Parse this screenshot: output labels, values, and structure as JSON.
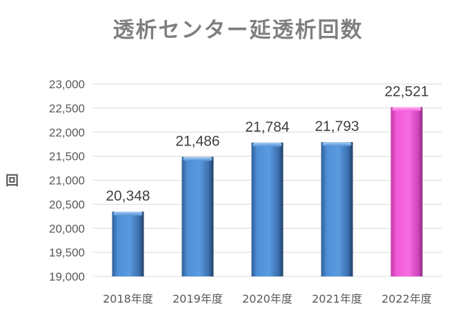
{
  "chart_data": {
    "type": "bar",
    "title": "透析センター延透析回数",
    "xlabel": "",
    "ylabel": "回",
    "categories": [
      "2018年度",
      "2019年度",
      "2020年度",
      "2021年度",
      "2022年度"
    ],
    "values": [
      20348,
      21486,
      21784,
      21793,
      22521
    ],
    "value_labels": [
      "20,348",
      "21,486",
      "21,784",
      "21,793",
      "22,521"
    ],
    "ylim": [
      19000,
      23000
    ],
    "yticks": [
      19000,
      19500,
      20000,
      20500,
      21000,
      21500,
      22000,
      22500,
      23000
    ],
    "ytick_labels": [
      "19,000",
      "19,500",
      "20,000",
      "20,500",
      "21,000",
      "21,500",
      "22,000",
      "22,500",
      "23,000"
    ],
    "grid": true,
    "legend": "none",
    "colors": {
      "default_bar": "#4f8fd6",
      "highlight_bar": "#f05ad8",
      "gridline": "#d9d9d9",
      "text": "#595959"
    },
    "highlight_index": 4
  }
}
